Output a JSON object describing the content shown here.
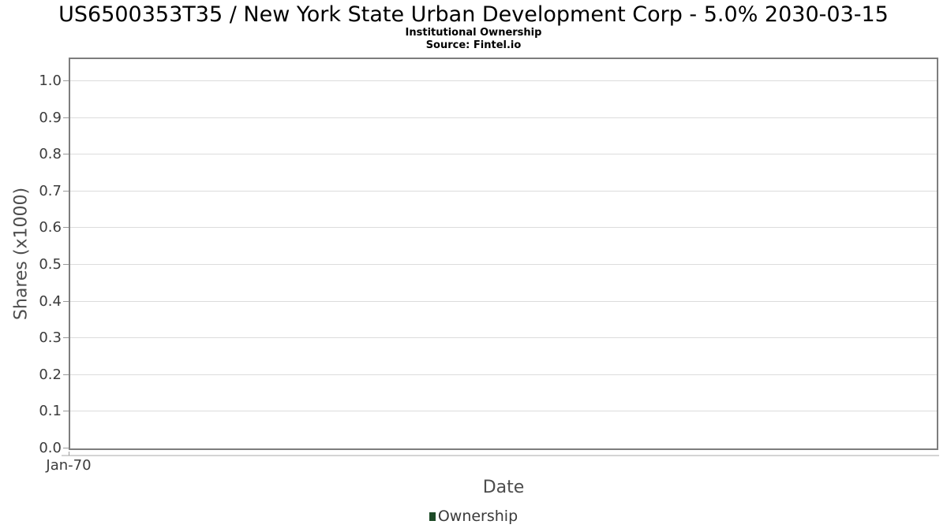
{
  "header": {
    "title": "US6500353T35 / New York State Urban Development Corp - 5.0% 2030-03-15",
    "subtitle": "Institutional Ownership",
    "source": "Source: Fintel.io"
  },
  "chart_data": {
    "type": "column",
    "title": "US6500353T35 / New York State Urban Development Corp - 5.0% 2030-03-15",
    "subtitle": "Institutional Ownership",
    "source": "Source: Fintel.io",
    "xlabel": "Date",
    "ylabel": "Shares (x1000)",
    "x_tick_labels": [
      "Jan-70"
    ],
    "y_tick_labels": [
      "0.0",
      "0.1",
      "0.2",
      "0.3",
      "0.4",
      "0.5",
      "0.6",
      "0.7",
      "0.8",
      "0.9",
      "1.0"
    ],
    "y_tick_values": [
      0,
      0.1,
      0.2,
      0.3,
      0.4,
      0.5,
      0.6,
      0.7,
      0.8,
      0.9,
      1.0
    ],
    "ylim": [
      0,
      1.06
    ],
    "grid": true,
    "legend_position": "bottom-center",
    "series": [
      {
        "name": "Ownership",
        "color": "#1d4a27",
        "x": [],
        "values": []
      }
    ]
  },
  "legend": {
    "entries": [
      {
        "label": "Ownership",
        "color": "#1d4a27"
      }
    ]
  },
  "colors": {
    "background": "#ffffff",
    "title": "#000000",
    "plot_border": "#7d7d7d",
    "gridline": "#dcdcdc",
    "axis_line": "#d4d4d4",
    "tick_mark": "#999999",
    "tick_label": "#3c3c3c",
    "axis_title": "#4d4d4d",
    "legend_label": "#3b3b3b",
    "series_ownership": "#1d4a27"
  }
}
